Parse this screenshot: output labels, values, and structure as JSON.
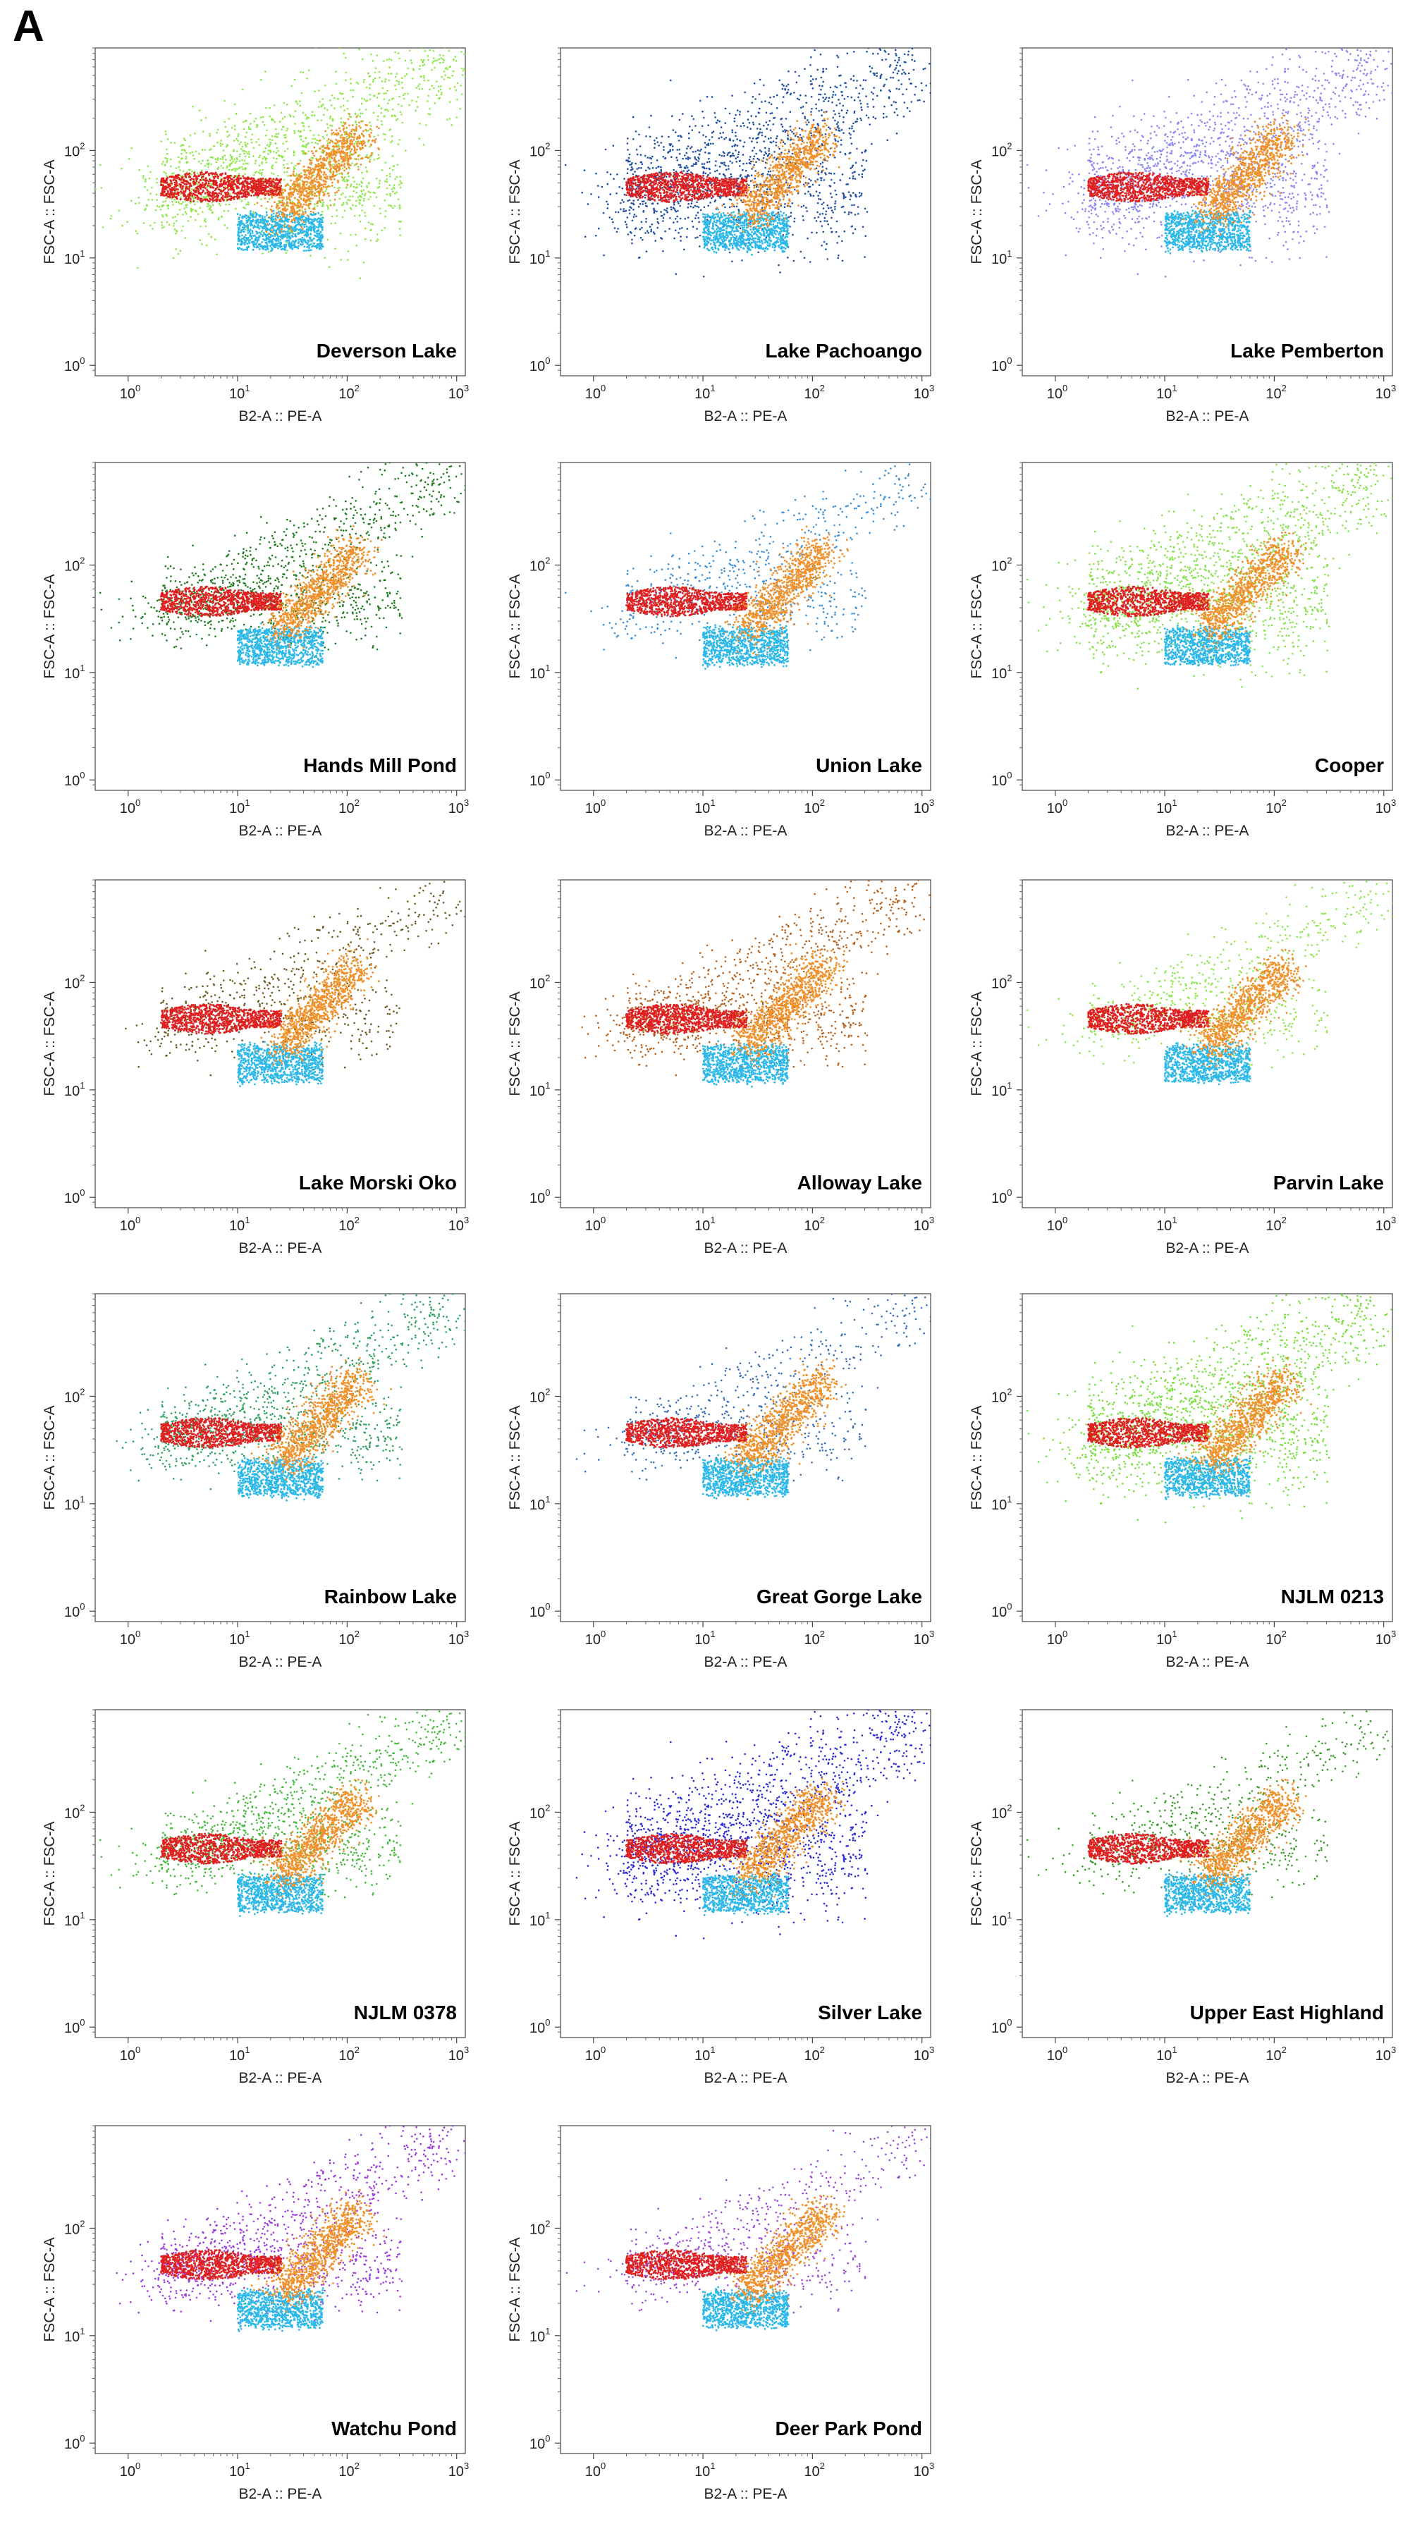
{
  "panel_letter": "A",
  "chart_data": {
    "type": "scatter",
    "description_axes": {
      "xlabel": "B2-A :: PE-A",
      "ylabel": "FSC-A :: FSC-A",
      "xscale": "log",
      "yscale": "log",
      "xlim": [
        0.5,
        1200
      ],
      "ylim": [
        0.8,
        900
      ]
    },
    "tick_base": "10",
    "x_tick_exponents": [
      "0",
      "1",
      "2",
      "3"
    ],
    "y_tick_exponents": [
      "0",
      "1",
      "2"
    ],
    "reference_populations": [
      {
        "name": "red population",
        "color": "#e02020",
        "x_range": [
          2,
          25
        ],
        "y_center": 46
      },
      {
        "name": "orange population",
        "color": "#f0902a",
        "x_range": [
          25,
          130
        ],
        "y_range": [
          25,
          140
        ]
      },
      {
        "name": "cyan population",
        "color": "#2cb8e8",
        "x_range": [
          10,
          60
        ],
        "y_range": [
          12,
          25
        ]
      }
    ],
    "panels": [
      {
        "label": "Deverson Lake",
        "sample_color": "#8ee84a",
        "spread": "wide"
      },
      {
        "label": "Lake Pachoango",
        "sample_color": "#1f4fa0",
        "spread": "wide"
      },
      {
        "label": "Lake Pemberton",
        "sample_color": "#8b86f2",
        "spread": "wide"
      },
      {
        "label": "Hands Mill Pond",
        "sample_color": "#1f7a1f",
        "spread": "diagonal"
      },
      {
        "label": "Union Lake",
        "sample_color": "#3d8fd6",
        "spread": "sparse"
      },
      {
        "label": "Cooper",
        "sample_color": "#86e24a",
        "spread": "wide"
      },
      {
        "label": "Lake Morski Oko",
        "sample_color": "#6b5a1e",
        "spread": "sparse"
      },
      {
        "label": "Alloway Lake",
        "sample_color": "#b8621e",
        "spread": "diagonal"
      },
      {
        "label": "Parvin Lake",
        "sample_color": "#8ee84a",
        "spread": "sparse"
      },
      {
        "label": "Rainbow Lake",
        "sample_color": "#2ea060",
        "spread": "diagonal"
      },
      {
        "label": "Great Gorge Lake",
        "sample_color": "#3a6fb8",
        "spread": "sparse"
      },
      {
        "label": "NJLM 0213",
        "sample_color": "#76e03a",
        "spread": "wide"
      },
      {
        "label": "NJLM 0378",
        "sample_color": "#44b83a",
        "spread": "diagonal"
      },
      {
        "label": "Silver Lake",
        "sample_color": "#2a2ad6",
        "spread": "wide"
      },
      {
        "label": "Upper East Highland",
        "sample_color": "#3a9a2a",
        "spread": "sparse"
      },
      {
        "label": "Watchu Pond",
        "sample_color": "#9a3ae0",
        "spread": "diagonal"
      },
      {
        "label": "Deer Park Pond",
        "sample_color": "#9a4ad8",
        "spread": "sparse"
      }
    ]
  }
}
